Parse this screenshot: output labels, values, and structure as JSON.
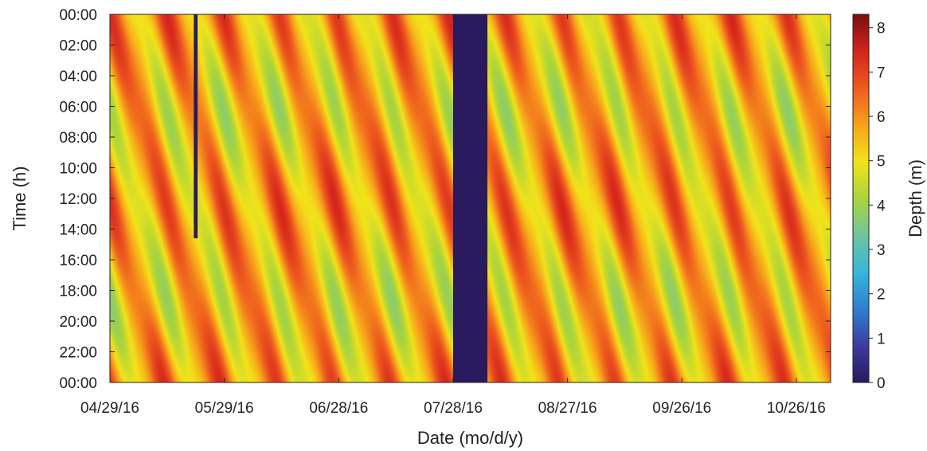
{
  "chart_data": {
    "type": "heatmap",
    "title": "",
    "xlabel": "Date (mo/d/y)",
    "ylabel": "Time (h)",
    "x_ticks": [
      "04/29/16",
      "05/29/16",
      "06/28/16",
      "07/28/16",
      "08/27/16",
      "09/26/16",
      "10/26/16"
    ],
    "x_range": [
      "04/29/16",
      "11/04/16"
    ],
    "y_ticks": [
      "00:00",
      "02:00",
      "04:00",
      "06:00",
      "08:00",
      "10:00",
      "12:00",
      "14:00",
      "16:00",
      "18:00",
      "20:00",
      "22:00",
      "00:00"
    ],
    "y_range_hours": [
      0,
      24
    ],
    "y_direction": "top-to-bottom",
    "colorbar": {
      "label": "Depth (m)",
      "ticks": [
        "0",
        "1",
        "2",
        "3",
        "4",
        "5",
        "6",
        "7",
        "8"
      ],
      "range": [
        0,
        8.3
      ],
      "colormap": [
        "#2a1a5e",
        "#3b3c9e",
        "#2f7fd0",
        "#35b7d8",
        "#6fc59c",
        "#a9d43c",
        "#f2e31a",
        "#f7a21b",
        "#ee5a1e",
        "#d4241d",
        "#7a0e0e"
      ]
    },
    "pattern": {
      "description_free": true,
      "mean_depth_m": 5.6,
      "tidal_amplitude_m": 1.7,
      "band_drift_hours_per_day": 0.84,
      "spring_neap_period_days": 14.8
    },
    "data_gaps": [
      {
        "start": "05/21/16",
        "end": "05/22/16",
        "time_start_h": 0,
        "time_end_h": 14.6,
        "value": 0
      },
      {
        "start": "07/28/16",
        "end": "08/06/16",
        "time_start_h": 0,
        "time_end_h": 24,
        "value": 0
      }
    ],
    "grid": false,
    "legend": "colorbar-right"
  }
}
